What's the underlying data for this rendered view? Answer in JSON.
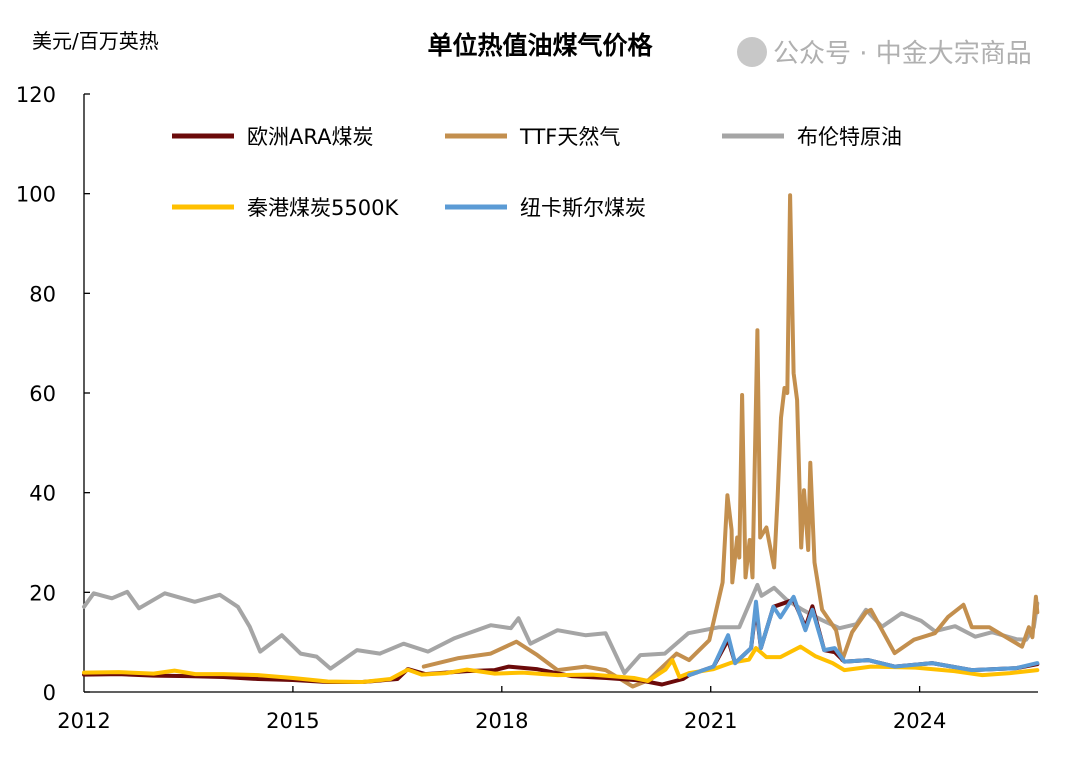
{
  "chart_data": {
    "type": "line",
    "title": "单位热值油煤气价格",
    "ylabel": "美元/百万英热",
    "xlabel": "",
    "xlim": [
      2012,
      2025.7
    ],
    "ylim": [
      0,
      120
    ],
    "yticks": [
      0,
      20,
      40,
      60,
      80,
      100,
      120
    ],
    "xticks": [
      2012,
      2015,
      2018,
      2021,
      2024
    ],
    "grid": false,
    "legend_position": "top",
    "series": [
      {
        "name": "布伦特原油",
        "color": "#a5a5a5",
        "points": [
          [
            2012.0,
            17.1
          ],
          [
            2012.14,
            19.8
          ],
          [
            2012.4,
            18.8
          ],
          [
            2012.62,
            20.1
          ],
          [
            2012.79,
            16.8
          ],
          [
            2013.16,
            19.8
          ],
          [
            2013.59,
            18.1
          ],
          [
            2013.95,
            19.5
          ],
          [
            2014.21,
            17.1
          ],
          [
            2014.38,
            13.1
          ],
          [
            2014.53,
            8.1
          ],
          [
            2014.84,
            11.4
          ],
          [
            2015.11,
            7.7
          ],
          [
            2015.34,
            7.1
          ],
          [
            2015.54,
            4.7
          ],
          [
            2015.92,
            8.4
          ],
          [
            2016.25,
            7.7
          ],
          [
            2016.59,
            9.7
          ],
          [
            2016.94,
            8.1
          ],
          [
            2017.32,
            10.8
          ],
          [
            2017.84,
            13.4
          ],
          [
            2018.13,
            12.8
          ],
          [
            2018.24,
            14.8
          ],
          [
            2018.41,
            9.7
          ],
          [
            2018.8,
            12.4
          ],
          [
            2019.2,
            11.4
          ],
          [
            2019.49,
            11.8
          ],
          [
            2019.76,
            3.8
          ],
          [
            2019.99,
            7.4
          ],
          [
            2020.34,
            7.7
          ],
          [
            2020.68,
            11.8
          ],
          [
            2021.12,
            13.0
          ],
          [
            2021.41,
            13.0
          ],
          [
            2021.67,
            21.5
          ],
          [
            2021.73,
            19.3
          ],
          [
            2021.91,
            20.9
          ],
          [
            2022.09,
            18.5
          ],
          [
            2022.32,
            16.5
          ],
          [
            2022.6,
            14.4
          ],
          [
            2022.85,
            12.8
          ],
          [
            2023.09,
            13.6
          ],
          [
            2023.23,
            16.5
          ],
          [
            2023.46,
            13.1
          ],
          [
            2023.74,
            15.8
          ],
          [
            2024.02,
            14.3
          ],
          [
            2024.22,
            12.2
          ],
          [
            2024.51,
            13.2
          ],
          [
            2024.8,
            11.1
          ],
          [
            2025.04,
            12.0
          ],
          [
            2025.39,
            10.6
          ],
          [
            2025.53,
            10.5
          ],
          [
            2025.64,
            13.0
          ],
          [
            2025.69,
            17.8
          ]
        ]
      },
      {
        "name": "TTF天然气",
        "color": "#c38f4e",
        "points": [
          [
            2016.88,
            5.1
          ],
          [
            2017.38,
            6.8
          ],
          [
            2017.84,
            7.7
          ],
          [
            2018.21,
            10.1
          ],
          [
            2018.51,
            7.4
          ],
          [
            2018.8,
            4.4
          ],
          [
            2019.2,
            5.1
          ],
          [
            2019.49,
            4.4
          ],
          [
            2019.88,
            1.1
          ],
          [
            2020.11,
            2.4
          ],
          [
            2020.51,
            7.7
          ],
          [
            2020.69,
            6.4
          ],
          [
            2020.98,
            10.4
          ],
          [
            2021.17,
            22.0
          ],
          [
            2021.24,
            39.5
          ],
          [
            2021.3,
            32.5
          ],
          [
            2021.31,
            22.0
          ],
          [
            2021.38,
            31.0
          ],
          [
            2021.41,
            27.0
          ],
          [
            2021.45,
            59.6
          ],
          [
            2021.5,
            23.0
          ],
          [
            2021.56,
            30.5
          ],
          [
            2021.6,
            23.0
          ],
          [
            2021.67,
            72.6
          ],
          [
            2021.71,
            31.0
          ],
          [
            2021.8,
            33.0
          ],
          [
            2021.91,
            25.0
          ],
          [
            2021.96,
            39.0
          ],
          [
            2022.01,
            55.0
          ],
          [
            2022.06,
            61.0
          ],
          [
            2022.1,
            60.0
          ],
          [
            2022.14,
            99.7
          ],
          [
            2022.19,
            64.0
          ],
          [
            2022.24,
            58.6
          ],
          [
            2022.3,
            29.0
          ],
          [
            2022.34,
            40.5
          ],
          [
            2022.4,
            28.5
          ],
          [
            2022.43,
            46.0
          ],
          [
            2022.49,
            26.0
          ],
          [
            2022.6,
            16.5
          ],
          [
            2022.8,
            12.4
          ],
          [
            2022.89,
            6.4
          ],
          [
            2023.03,
            12.0
          ],
          [
            2023.23,
            16.0
          ],
          [
            2023.3,
            16.5
          ],
          [
            2023.64,
            7.8
          ],
          [
            2023.92,
            10.5
          ],
          [
            2024.22,
            11.8
          ],
          [
            2024.41,
            15.1
          ],
          [
            2024.63,
            17.5
          ],
          [
            2024.75,
            13.0
          ],
          [
            2025.0,
            13.0
          ],
          [
            2025.24,
            11.0
          ],
          [
            2025.47,
            9.1
          ],
          [
            2025.57,
            13.0
          ],
          [
            2025.62,
            11.0
          ],
          [
            2025.67,
            19.1
          ],
          [
            2025.69,
            16.0
          ]
        ]
      },
      {
        "name": "欧洲ARA煤炭",
        "color": "#6b0a0a",
        "points": [
          [
            2012.0,
            3.5
          ],
          [
            2012.5,
            3.6
          ],
          [
            2013.0,
            3.3
          ],
          [
            2013.5,
            3.2
          ],
          [
            2014.0,
            3.0
          ],
          [
            2014.5,
            2.6
          ],
          [
            2015.0,
            2.4
          ],
          [
            2015.5,
            2.0
          ],
          [
            2016.0,
            2.0
          ],
          [
            2016.5,
            2.6
          ],
          [
            2016.65,
            4.6
          ],
          [
            2016.9,
            3.6
          ],
          [
            2017.5,
            4.2
          ],
          [
            2017.9,
            4.4
          ],
          [
            2018.1,
            5.1
          ],
          [
            2018.5,
            4.6
          ],
          [
            2019.0,
            3.2
          ],
          [
            2019.5,
            2.8
          ],
          [
            2020.0,
            2.3
          ],
          [
            2020.3,
            1.5
          ],
          [
            2020.6,
            2.6
          ],
          [
            2020.69,
            3.4
          ],
          [
            2021.04,
            5.1
          ],
          [
            2021.25,
            10.5
          ],
          [
            2021.35,
            5.8
          ],
          [
            2021.58,
            8.8
          ],
          [
            2021.65,
            17.0
          ],
          [
            2021.72,
            8.8
          ],
          [
            2021.9,
            17.1
          ],
          [
            2022.19,
            18.5
          ],
          [
            2022.36,
            13.0
          ],
          [
            2022.46,
            17.2
          ],
          [
            2022.63,
            8.4
          ],
          [
            2022.78,
            8.0
          ],
          [
            2022.92,
            6.1
          ],
          [
            2023.26,
            6.4
          ],
          [
            2023.64,
            5.1
          ],
          [
            2024.18,
            5.8
          ],
          [
            2024.75,
            4.4
          ],
          [
            2025.39,
            4.8
          ],
          [
            2025.69,
            5.6
          ]
        ]
      },
      {
        "name": "秦港煤炭5500K",
        "color": "#ffc000",
        "points": [
          [
            2012.0,
            3.9
          ],
          [
            2012.5,
            4.0
          ],
          [
            2013.0,
            3.7
          ],
          [
            2013.3,
            4.3
          ],
          [
            2013.6,
            3.6
          ],
          [
            2014.0,
            3.6
          ],
          [
            2014.5,
            3.4
          ],
          [
            2015.0,
            2.8
          ],
          [
            2015.5,
            2.1
          ],
          [
            2016.0,
            2.0
          ],
          [
            2016.4,
            2.6
          ],
          [
            2016.65,
            4.5
          ],
          [
            2016.85,
            3.5
          ],
          [
            2017.2,
            3.8
          ],
          [
            2017.5,
            4.5
          ],
          [
            2017.9,
            3.7
          ],
          [
            2018.3,
            3.9
          ],
          [
            2018.8,
            3.4
          ],
          [
            2019.3,
            3.5
          ],
          [
            2019.9,
            2.8
          ],
          [
            2020.1,
            2.2
          ],
          [
            2020.35,
            4.5
          ],
          [
            2020.45,
            6.4
          ],
          [
            2020.55,
            3.0
          ],
          [
            2020.69,
            3.8
          ],
          [
            2021.04,
            4.6
          ],
          [
            2021.3,
            5.9
          ],
          [
            2021.55,
            6.5
          ],
          [
            2021.65,
            8.8
          ],
          [
            2021.8,
            7.0
          ],
          [
            2022.0,
            7.0
          ],
          [
            2022.29,
            9.1
          ],
          [
            2022.5,
            7.2
          ],
          [
            2022.75,
            5.8
          ],
          [
            2022.92,
            4.4
          ],
          [
            2023.3,
            5.1
          ],
          [
            2023.94,
            4.9
          ],
          [
            2024.5,
            4.2
          ],
          [
            2024.9,
            3.4
          ],
          [
            2025.3,
            3.8
          ],
          [
            2025.69,
            4.4
          ]
        ]
      },
      {
        "name": "纽卡斯尔煤炭",
        "color": "#5b9bd5",
        "points": [
          [
            2020.69,
            3.4
          ],
          [
            2021.04,
            5.1
          ],
          [
            2021.25,
            11.4
          ],
          [
            2021.35,
            5.8
          ],
          [
            2021.58,
            8.8
          ],
          [
            2021.65,
            18.1
          ],
          [
            2021.72,
            8.8
          ],
          [
            2021.9,
            17.1
          ],
          [
            2022.0,
            15.0
          ],
          [
            2022.19,
            19.1
          ],
          [
            2022.36,
            12.4
          ],
          [
            2022.46,
            16.5
          ],
          [
            2022.63,
            8.4
          ],
          [
            2022.78,
            8.8
          ],
          [
            2022.92,
            6.1
          ],
          [
            2023.26,
            6.4
          ],
          [
            2023.64,
            5.1
          ],
          [
            2024.18,
            5.8
          ],
          [
            2024.75,
            4.4
          ],
          [
            2025.39,
            4.8
          ],
          [
            2025.69,
            5.8
          ]
        ]
      }
    ]
  },
  "watermark": "公众号 · 中金大宗商品"
}
